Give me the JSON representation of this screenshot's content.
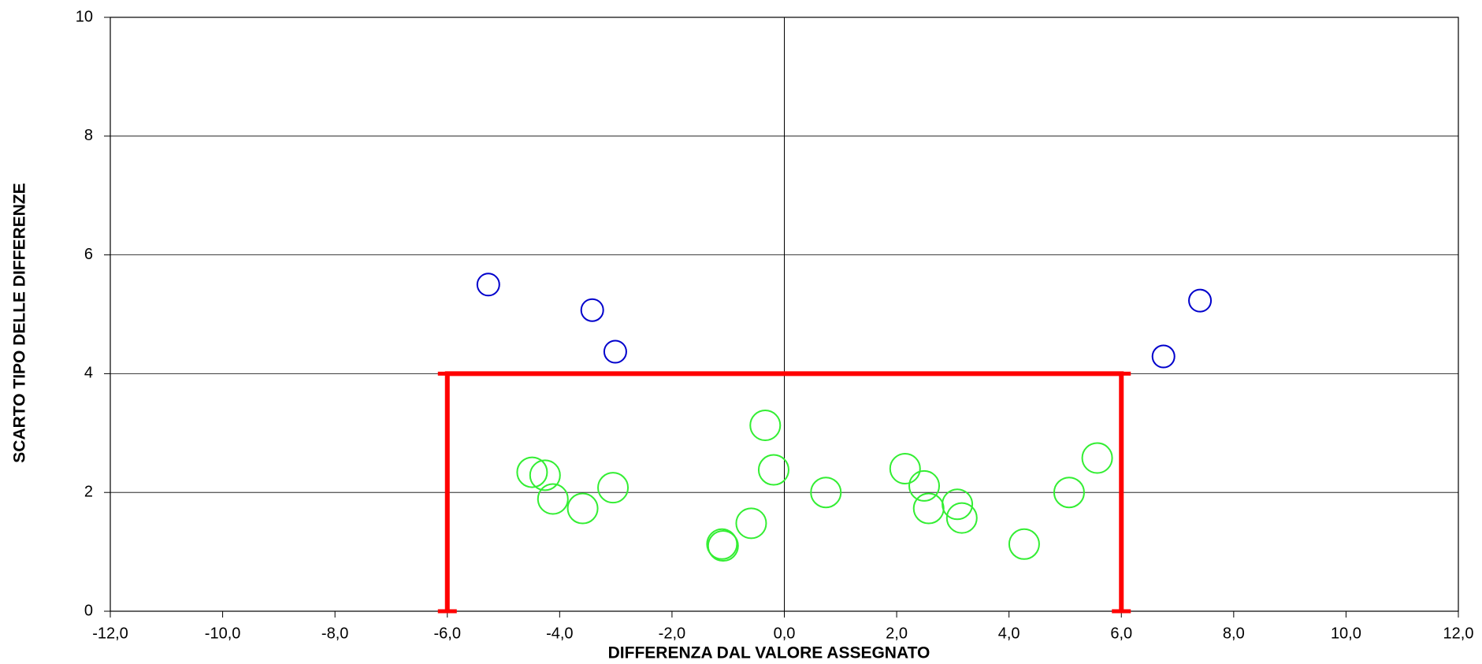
{
  "chart_data": {
    "type": "scatter",
    "xlabel": "DIFFERENZA DAL VALORE ASSEGNATO",
    "ylabel": "SCARTO TIPO DELLE DIFFERENZE",
    "xlim": [
      -12,
      12
    ],
    "ylim": [
      0,
      10
    ],
    "xticks": [
      {
        "value": -12,
        "label": "-12,0"
      },
      {
        "value": -10,
        "label": "-10,0"
      },
      {
        "value": -8,
        "label": "-8,0"
      },
      {
        "value": -6,
        "label": "-6,0"
      },
      {
        "value": -4,
        "label": "-4,0"
      },
      {
        "value": -2,
        "label": "-2,0"
      },
      {
        "value": 0,
        "label": "0,0"
      },
      {
        "value": 2,
        "label": "2,0"
      },
      {
        "value": 4,
        "label": "4,0"
      },
      {
        "value": 6,
        "label": "6,0"
      },
      {
        "value": 8,
        "label": "8,0"
      },
      {
        "value": 10,
        "label": "10,0"
      },
      {
        "value": 12,
        "label": "12,0"
      }
    ],
    "yticks": [
      0,
      2,
      4,
      6,
      8,
      10
    ],
    "grid": true,
    "series": [
      {
        "color": "#0000cc",
        "x": [
          -5.27,
          -3.42,
          -3.01,
          6.75,
          7.4
        ],
        "y": [
          5.5,
          5.07,
          4.37,
          4.29,
          5.23
        ]
      },
      {
        "color": "#33ee33",
        "x": [
          -4.49,
          -4.26,
          -4.12,
          -3.59,
          -3.05,
          -1.09,
          -1.11,
          -0.59,
          -0.34,
          -0.19,
          0.74,
          2.15,
          2.49,
          2.57,
          3.08,
          3.16,
          4.27,
          5.07,
          5.57
        ],
        "y": [
          2.34,
          2.29,
          1.89,
          1.73,
          2.08,
          1.1,
          1.13,
          1.48,
          3.13,
          2.38,
          2.0,
          2.4,
          2.11,
          1.73,
          1.8,
          1.57,
          1.13,
          2.0,
          2.58
        ]
      }
    ],
    "limit_lines": {
      "color": "#ff0000",
      "x": [
        -6,
        -6,
        6,
        6
      ],
      "y": [
        0,
        4,
        4,
        0
      ]
    }
  }
}
